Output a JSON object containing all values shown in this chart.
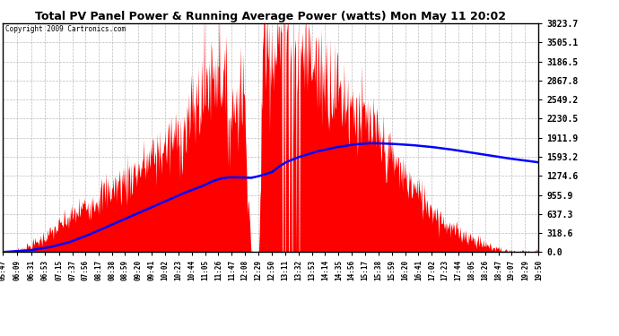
{
  "title": "Total PV Panel Power & Running Average Power (watts) Mon May 11 20:02",
  "copyright": "Copyright 2009 Cartronics.com",
  "background_color": "#ffffff",
  "grid_color": "#bbbbbb",
  "fill_color": "#ff0000",
  "line_color": "#0000ff",
  "ylim": [
    0.0,
    3823.7
  ],
  "yticks": [
    0.0,
    318.6,
    637.3,
    955.9,
    1274.6,
    1593.2,
    1911.9,
    2230.5,
    2549.2,
    2867.8,
    3186.5,
    3505.1,
    3823.7
  ],
  "x_tick_labels": [
    "05:47",
    "06:09",
    "06:31",
    "06:53",
    "07:15",
    "07:37",
    "07:56",
    "08:17",
    "08:38",
    "08:59",
    "09:20",
    "09:41",
    "10:02",
    "10:23",
    "10:44",
    "11:05",
    "11:26",
    "11:47",
    "12:08",
    "12:29",
    "12:50",
    "13:11",
    "13:32",
    "13:53",
    "14:14",
    "14:35",
    "14:56",
    "15:17",
    "15:38",
    "15:59",
    "16:20",
    "16:41",
    "17:02",
    "17:23",
    "17:44",
    "18:05",
    "18:26",
    "18:47",
    "19:07",
    "19:29",
    "19:50"
  ],
  "running_avg_points": [
    [
      5.783,
      0
    ],
    [
      6.0,
      10
    ],
    [
      6.5,
      30
    ],
    [
      7.0,
      80
    ],
    [
      7.5,
      160
    ],
    [
      8.0,
      280
    ],
    [
      8.5,
      420
    ],
    [
      9.0,
      560
    ],
    [
      9.5,
      700
    ],
    [
      10.0,
      840
    ],
    [
      10.5,
      980
    ],
    [
      11.0,
      1100
    ],
    [
      11.26,
      1180
    ],
    [
      11.5,
      1230
    ],
    [
      11.7,
      1250
    ],
    [
      12.0,
      1250
    ],
    [
      12.29,
      1240
    ],
    [
      12.5,
      1270
    ],
    [
      12.85,
      1340
    ],
    [
      13.0,
      1420
    ],
    [
      13.2,
      1500
    ],
    [
      13.5,
      1580
    ],
    [
      14.0,
      1680
    ],
    [
      14.5,
      1750
    ],
    [
      15.0,
      1800
    ],
    [
      15.38,
      1820
    ],
    [
      15.59,
      1820
    ],
    [
      16.0,
      1810
    ],
    [
      16.5,
      1790
    ],
    [
      17.0,
      1760
    ],
    [
      17.5,
      1720
    ],
    [
      18.0,
      1670
    ],
    [
      18.5,
      1620
    ],
    [
      19.0,
      1570
    ],
    [
      19.5,
      1530
    ],
    [
      19.833,
      1500
    ]
  ]
}
